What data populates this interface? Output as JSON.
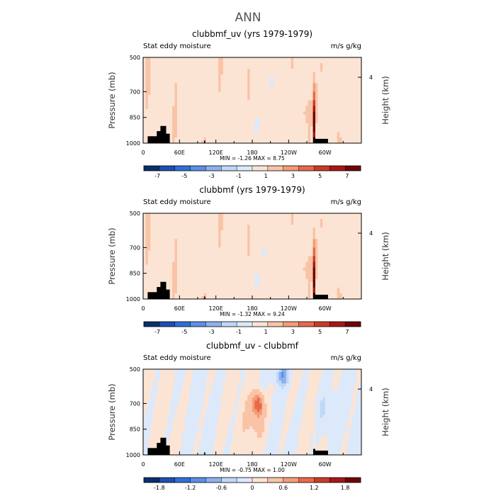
{
  "suptitle": "ANN",
  "colors": {
    "full": [
      "#08306b",
      "#1c4fb0",
      "#2f6fd8",
      "#5a8fe6",
      "#8db0ee",
      "#c0d7f7",
      "#dce9fb",
      "#fce4d4",
      "#f9c3a6",
      "#f39c77",
      "#e8694a",
      "#cc3a26",
      "#a51814",
      "#6e0606"
    ],
    "diff": [
      "#08306b",
      "#1c4fb0",
      "#2f6fd8",
      "#5a8fe6",
      "#8db0ee",
      "#c0d7f7",
      "#dce9fb",
      "#fce4d4",
      "#f9c3a6",
      "#f39c77",
      "#e8694a",
      "#cc3a26",
      "#a51814",
      "#6e0606"
    ]
  },
  "chart_data": [
    {
      "type": "heatmap",
      "title": "clubbmf_uv (yrs 1979-1979)",
      "left_label": "Stat eddy moisture",
      "right_label": "m/s g/kg",
      "ylabel": "Pressure (mb)",
      "ylabel_right": "Height (km)",
      "yticks": [
        "500",
        "700",
        "850",
        "1000"
      ],
      "ytick_values": [
        500,
        700,
        850,
        1000
      ],
      "ylim": [
        1000,
        500
      ],
      "right_ticks": [
        "4"
      ],
      "xticks": [
        "0",
        "60E",
        "120E",
        "180",
        "120W",
        "60W"
      ],
      "xtick_values": [
        0,
        60,
        120,
        180,
        240,
        300
      ],
      "xlim": [
        0,
        360
      ],
      "stats": "MIN =   -1.26   MAX =   8.75",
      "min": -1.26,
      "max": 8.75,
      "colorbar_ticks": [
        "-7",
        "-5",
        "-3",
        "-1",
        "1",
        "3",
        "5",
        "7"
      ],
      "colorbar_levels": [
        -7,
        -5,
        -3,
        -1,
        1,
        3,
        5,
        7
      ],
      "features": {
        "blue_patch_lon": 213,
        "blue_patch_p": 640,
        "peak_lon": 283
      }
    },
    {
      "type": "heatmap",
      "title": "clubbmf (yrs 1979-1979)",
      "left_label": "Stat eddy moisture",
      "right_label": "m/s g/kg",
      "ylabel": "Pressure (mb)",
      "ylabel_right": "Height (km)",
      "yticks": [
        "500",
        "700",
        "850",
        "1000"
      ],
      "ytick_values": [
        500,
        700,
        850,
        1000
      ],
      "ylim": [
        1000,
        500
      ],
      "right_ticks": [
        "4"
      ],
      "xticks": [
        "0",
        "60E",
        "120E",
        "180",
        "120W",
        "60W"
      ],
      "xtick_values": [
        0,
        60,
        120,
        180,
        240,
        300
      ],
      "xlim": [
        0,
        360
      ],
      "stats": "MIN =   -1.32   MAX =   9.24",
      "min": -1.32,
      "max": 9.24,
      "colorbar_ticks": [
        "-7",
        "-5",
        "-3",
        "-1",
        "1",
        "3",
        "5",
        "7"
      ],
      "colorbar_levels": [
        -7,
        -5,
        -3,
        -1,
        1,
        3,
        5,
        7
      ],
      "features": {
        "blue_patch_lon": 200,
        "blue_patch_p": 725,
        "peak_lon": 283
      }
    },
    {
      "type": "heatmap",
      "title": "clubbmf_uv - clubbmf",
      "left_label": "Stat eddy moisture",
      "right_label": "m/s g/kg",
      "ylabel": "Pressure (mb)",
      "ylabel_right": "Height (km)",
      "yticks": [
        "500",
        "700",
        "850",
        "1000"
      ],
      "ytick_values": [
        500,
        700,
        850,
        1000
      ],
      "ylim": [
        1000,
        500
      ],
      "right_ticks": [
        "4"
      ],
      "xticks": [
        "0",
        "60E",
        "120E",
        "180",
        "120W",
        "60W"
      ],
      "xtick_values": [
        0,
        60,
        120,
        180,
        240,
        300
      ],
      "xlim": [
        0,
        360
      ],
      "stats": "MIN =   -0.75   MAX =   1.00",
      "min": -0.75,
      "max": 1.0,
      "colorbar_ticks": [
        "-1.8",
        "-1.2",
        "-0.6",
        "0",
        "0.6",
        "1.2",
        "1.8"
      ],
      "colorbar_levels": [
        -1.8,
        -1.2,
        -0.6,
        0,
        0.6,
        1.2,
        1.8
      ],
      "features": {
        "red_core_lon": 190,
        "red_core_p": 700,
        "blue_core_lon": 230,
        "blue_core_p": 540
      }
    }
  ]
}
